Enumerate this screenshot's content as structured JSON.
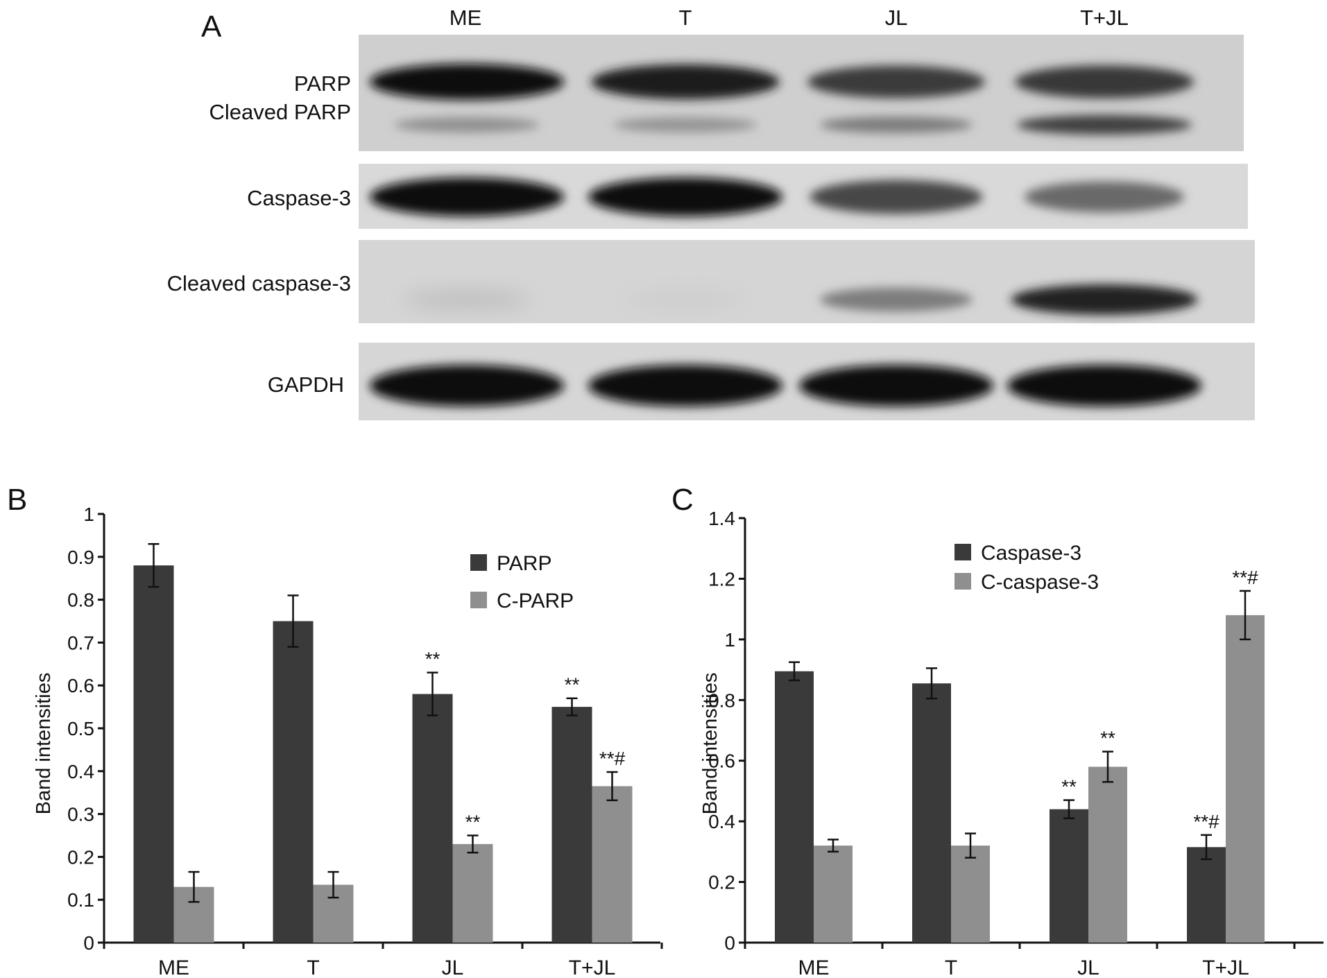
{
  "panels": {
    "a": "A",
    "b": "B",
    "c": "C"
  },
  "blot": {
    "lanes": [
      "ME",
      "T",
      "JL",
      "T+JL"
    ],
    "labels": [
      "PARP",
      "Cleaved PARP",
      "Caspase-3",
      "Cleaved caspase-3",
      "GAPDH"
    ],
    "band_intensity": {
      "PARP": [
        1.0,
        0.92,
        0.78,
        0.8
      ],
      "Cleaved PARP": [
        0.35,
        0.33,
        0.45,
        0.75
      ],
      "Caspase-3": [
        1.0,
        1.0,
        0.72,
        0.55
      ],
      "Cleaved caspase-3": [
        0.12,
        0.05,
        0.45,
        0.9
      ],
      "GAPDH": [
        1.0,
        1.0,
        1.0,
        1.0
      ]
    }
  },
  "colors": {
    "dark": "#3a3a3a",
    "light": "#8f8f8f"
  },
  "chart_data": [
    {
      "type": "bar",
      "title": "",
      "categories": [
        "ME",
        "T",
        "JL",
        "T+JL"
      ],
      "ylabel": "Band intensities",
      "ylim": [
        0,
        1
      ],
      "yticks": [
        "0",
        "0.1",
        "0.2",
        "0.3",
        "0.4",
        "0.5",
        "0.6",
        "0.7",
        "0.8",
        "0.9",
        "1"
      ],
      "legend_position": "top-right",
      "series": [
        {
          "name": "PARP",
          "values": [
            0.88,
            0.75,
            0.58,
            0.55
          ],
          "errors": [
            0.05,
            0.06,
            0.05,
            0.02
          ],
          "annotations": [
            "",
            "",
            "**",
            "**"
          ]
        },
        {
          "name": "C-PARP",
          "values": [
            0.13,
            0.135,
            0.23,
            0.365
          ],
          "errors": [
            0.035,
            0.03,
            0.02,
            0.033
          ],
          "annotations": [
            "",
            "",
            "**",
            "**#"
          ]
        }
      ]
    },
    {
      "type": "bar",
      "title": "",
      "categories": [
        "ME",
        "T",
        "JL",
        "T+JL"
      ],
      "ylabel": "Band intensities",
      "ylim": [
        0,
        1.4
      ],
      "yticks": [
        "0",
        "0.2",
        "0.4",
        "0.6",
        "0.8",
        "1",
        "1.2",
        "1.4"
      ],
      "legend_position": "top-left",
      "series": [
        {
          "name": "Caspase-3",
          "values": [
            0.895,
            0.855,
            0.44,
            0.315
          ],
          "errors": [
            0.03,
            0.05,
            0.03,
            0.04
          ],
          "annotations": [
            "",
            "",
            "**",
            "**#"
          ]
        },
        {
          "name": "C-caspase-3",
          "values": [
            0.32,
            0.32,
            0.58,
            1.08
          ],
          "errors": [
            0.02,
            0.04,
            0.05,
            0.08
          ],
          "annotations": [
            "",
            "",
            "**",
            "**#"
          ]
        }
      ]
    }
  ]
}
